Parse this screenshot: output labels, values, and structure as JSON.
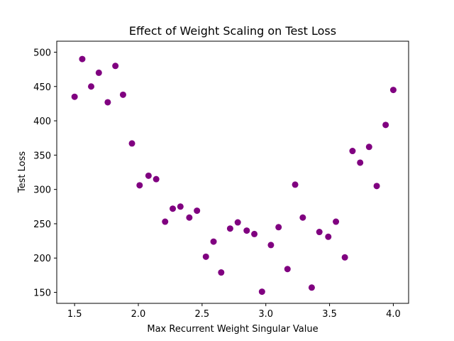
{
  "chart_data": {
    "type": "scatter",
    "title": "Effect of Weight Scaling on Test Loss",
    "xlabel": "Max Recurrent Weight Singular Value",
    "ylabel": "Test Loss",
    "xlim": [
      1.36,
      4.12
    ],
    "ylim": [
      134,
      516
    ],
    "xticks": [
      1.5,
      2.0,
      2.5,
      3.0,
      3.5,
      4.0
    ],
    "xtick_labels": [
      "1.5",
      "2.0",
      "2.5",
      "3.0",
      "3.5",
      "4.0"
    ],
    "yticks": [
      150,
      200,
      250,
      300,
      350,
      400,
      450,
      500
    ],
    "ytick_labels": [
      "150",
      "200",
      "250",
      "300",
      "350",
      "400",
      "450",
      "500"
    ],
    "grid": false,
    "marker_color": "#800080",
    "points": [
      {
        "x": 1.5,
        "y": 435
      },
      {
        "x": 1.56,
        "y": 490
      },
      {
        "x": 1.63,
        "y": 450
      },
      {
        "x": 1.69,
        "y": 470
      },
      {
        "x": 1.76,
        "y": 427
      },
      {
        "x": 1.82,
        "y": 480
      },
      {
        "x": 1.88,
        "y": 438
      },
      {
        "x": 1.95,
        "y": 367
      },
      {
        "x": 2.01,
        "y": 306
      },
      {
        "x": 2.08,
        "y": 320
      },
      {
        "x": 2.14,
        "y": 315
      },
      {
        "x": 2.21,
        "y": 253
      },
      {
        "x": 2.27,
        "y": 272
      },
      {
        "x": 2.33,
        "y": 275
      },
      {
        "x": 2.4,
        "y": 259
      },
      {
        "x": 2.46,
        "y": 269
      },
      {
        "x": 2.53,
        "y": 202
      },
      {
        "x": 2.59,
        "y": 224
      },
      {
        "x": 2.65,
        "y": 179
      },
      {
        "x": 2.72,
        "y": 243
      },
      {
        "x": 2.78,
        "y": 252
      },
      {
        "x": 2.85,
        "y": 240
      },
      {
        "x": 2.91,
        "y": 235
      },
      {
        "x": 2.97,
        "y": 151
      },
      {
        "x": 3.04,
        "y": 219
      },
      {
        "x": 3.1,
        "y": 245
      },
      {
        "x": 3.17,
        "y": 184
      },
      {
        "x": 3.23,
        "y": 307
      },
      {
        "x": 3.29,
        "y": 259
      },
      {
        "x": 3.36,
        "y": 157
      },
      {
        "x": 3.42,
        "y": 238
      },
      {
        "x": 3.49,
        "y": 231
      },
      {
        "x": 3.55,
        "y": 253
      },
      {
        "x": 3.62,
        "y": 201
      },
      {
        "x": 3.68,
        "y": 356
      },
      {
        "x": 3.74,
        "y": 339
      },
      {
        "x": 3.81,
        "y": 362
      },
      {
        "x": 3.87,
        "y": 305
      },
      {
        "x": 3.94,
        "y": 394
      },
      {
        "x": 4.0,
        "y": 445
      }
    ]
  }
}
